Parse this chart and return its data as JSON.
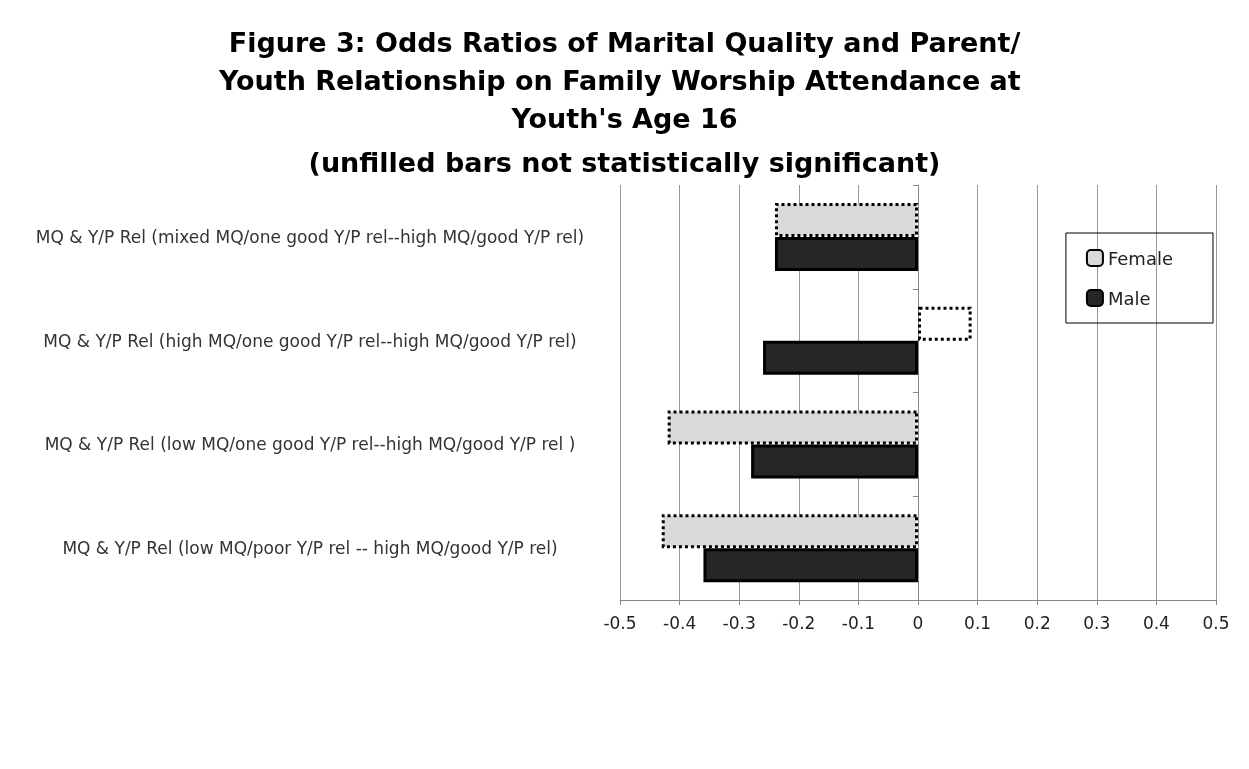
{
  "chart_data": {
    "type": "bar",
    "orientation": "horizontal",
    "title": "Figure 3: Odds Ratios of Marital Quality and Parent/Youth Relationship on Family Worship Attendance at Youth's Age 16",
    "subtitle": "(unfilled bars not statistically significant)",
    "categories": [
      "MQ & Y/P Rel (mixed MQ/one good Y/P rel--high MQ/good Y/P rel)",
      "MQ & Y/P Rel (high MQ/one good Y/P rel--high MQ/good Y/P rel)",
      "MQ & Y/P Rel (low MQ/one good Y/P rel--high MQ/good Y/P rel )",
      "MQ & Y/P Rel (low MQ/poor Y/P rel -- high MQ/good Y/P rel)"
    ],
    "series": [
      {
        "name": "Female",
        "color": "#d9d9d9",
        "colors": [
          "#d9d9d9",
          "#ffffff",
          "#d9d9d9",
          "#d9d9d9"
        ],
        "line_style": "dotted",
        "values": [
          -0.24,
          0.09,
          -0.42,
          -0.43
        ]
      },
      {
        "name": "Male",
        "color": "#262626",
        "line_style": "solid",
        "values": [
          -0.24,
          -0.26,
          -0.28,
          -0.36
        ]
      }
    ],
    "xlim": [
      -0.5,
      0.5
    ],
    "xticks": [
      -0.5,
      -0.4,
      -0.3,
      -0.2,
      -0.1,
      0,
      0.1,
      0.2,
      0.3,
      0.4,
      0.5
    ],
    "grid": "x",
    "legend": "top right"
  }
}
